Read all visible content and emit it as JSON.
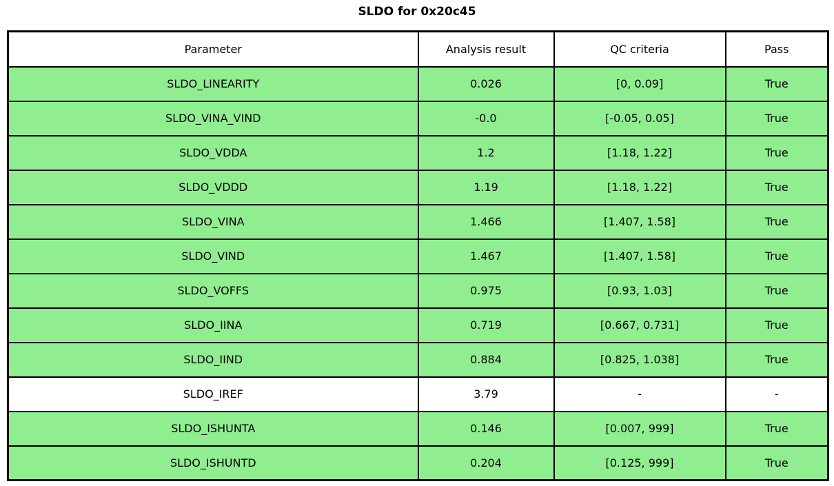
{
  "title": "SLDO for 0x20c45",
  "colors": {
    "pass_green": "#90EE90",
    "border": "#000000",
    "background": "#ffffff"
  },
  "table": {
    "headers": [
      "Parameter",
      "Analysis result",
      "QC criteria",
      "Pass"
    ],
    "rows": [
      {
        "parameter": "SLDO_LINEARITY",
        "result": "0.026",
        "criteria": "[0, 0.09]",
        "pass": "True"
      },
      {
        "parameter": "SLDO_VINA_VIND",
        "result": "-0.0",
        "criteria": "[-0.05, 0.05]",
        "pass": "True"
      },
      {
        "parameter": "SLDO_VDDA",
        "result": "1.2",
        "criteria": "[1.18, 1.22]",
        "pass": "True"
      },
      {
        "parameter": "SLDO_VDDD",
        "result": "1.19",
        "criteria": "[1.18, 1.22]",
        "pass": "True"
      },
      {
        "parameter": "SLDO_VINA",
        "result": "1.466",
        "criteria": "[1.407, 1.58]",
        "pass": "True"
      },
      {
        "parameter": "SLDO_VIND",
        "result": "1.467",
        "criteria": "[1.407, 1.58]",
        "pass": "True"
      },
      {
        "parameter": "SLDO_VOFFS",
        "result": "0.975",
        "criteria": "[0.93, 1.03]",
        "pass": "True"
      },
      {
        "parameter": "SLDO_IINA",
        "result": "0.719",
        "criteria": "[0.667, 0.731]",
        "pass": "True"
      },
      {
        "parameter": "SLDO_IIND",
        "result": "0.884",
        "criteria": "[0.825, 1.038]",
        "pass": "True"
      },
      {
        "parameter": "SLDO_IREF",
        "result": "3.79",
        "criteria": "-",
        "pass": "-"
      },
      {
        "parameter": "SLDO_ISHUNTA",
        "result": "0.146",
        "criteria": "[0.007, 999]",
        "pass": "True"
      },
      {
        "parameter": "SLDO_ISHUNTD",
        "result": "0.204",
        "criteria": "[0.125, 999]",
        "pass": "True"
      }
    ]
  }
}
